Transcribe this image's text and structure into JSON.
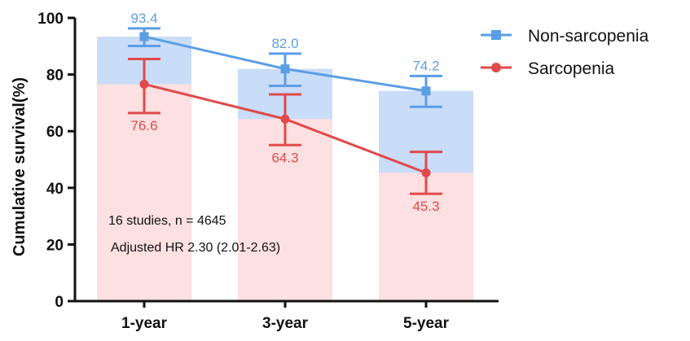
{
  "chart_data": {
    "type": "bar",
    "title": "",
    "xlabel": "",
    "ylabel": "Cumulative survival(%)",
    "ylim": [
      0,
      100
    ],
    "yticks": [
      "0",
      "20",
      "40",
      "60",
      "80",
      "100"
    ],
    "categories": [
      "1-year",
      "3-year",
      "5-year"
    ],
    "series": [
      {
        "name": "Non-sarcopenia",
        "color": "#5b9ee6",
        "bar_color": "#c9dcf8",
        "marker": "square",
        "values": [
          93.4,
          82.0,
          74.2
        ],
        "labels": [
          "93.4",
          "82.0",
          "74.2"
        ],
        "ci_upper": [
          96.3,
          87.4,
          79.5
        ],
        "ci_lower": [
          90.1,
          76.0,
          68.6
        ]
      },
      {
        "name": "Sarcopenia",
        "color": "#e04a4a",
        "bar_color": "#fde0e1",
        "marker": "circle",
        "values": [
          76.6,
          64.3,
          45.3
        ],
        "labels": [
          "76.6",
          "64.3",
          "45.3"
        ],
        "ci_upper": [
          85.5,
          73.0,
          52.7
        ],
        "ci_lower": [
          66.4,
          55.1,
          37.9
        ]
      }
    ],
    "annotations": [
      "16 studies, n = 4645",
      "Adjusted HR 2.30 (2.01-2.63)"
    ],
    "legend": "top-right",
    "grid": false
  }
}
